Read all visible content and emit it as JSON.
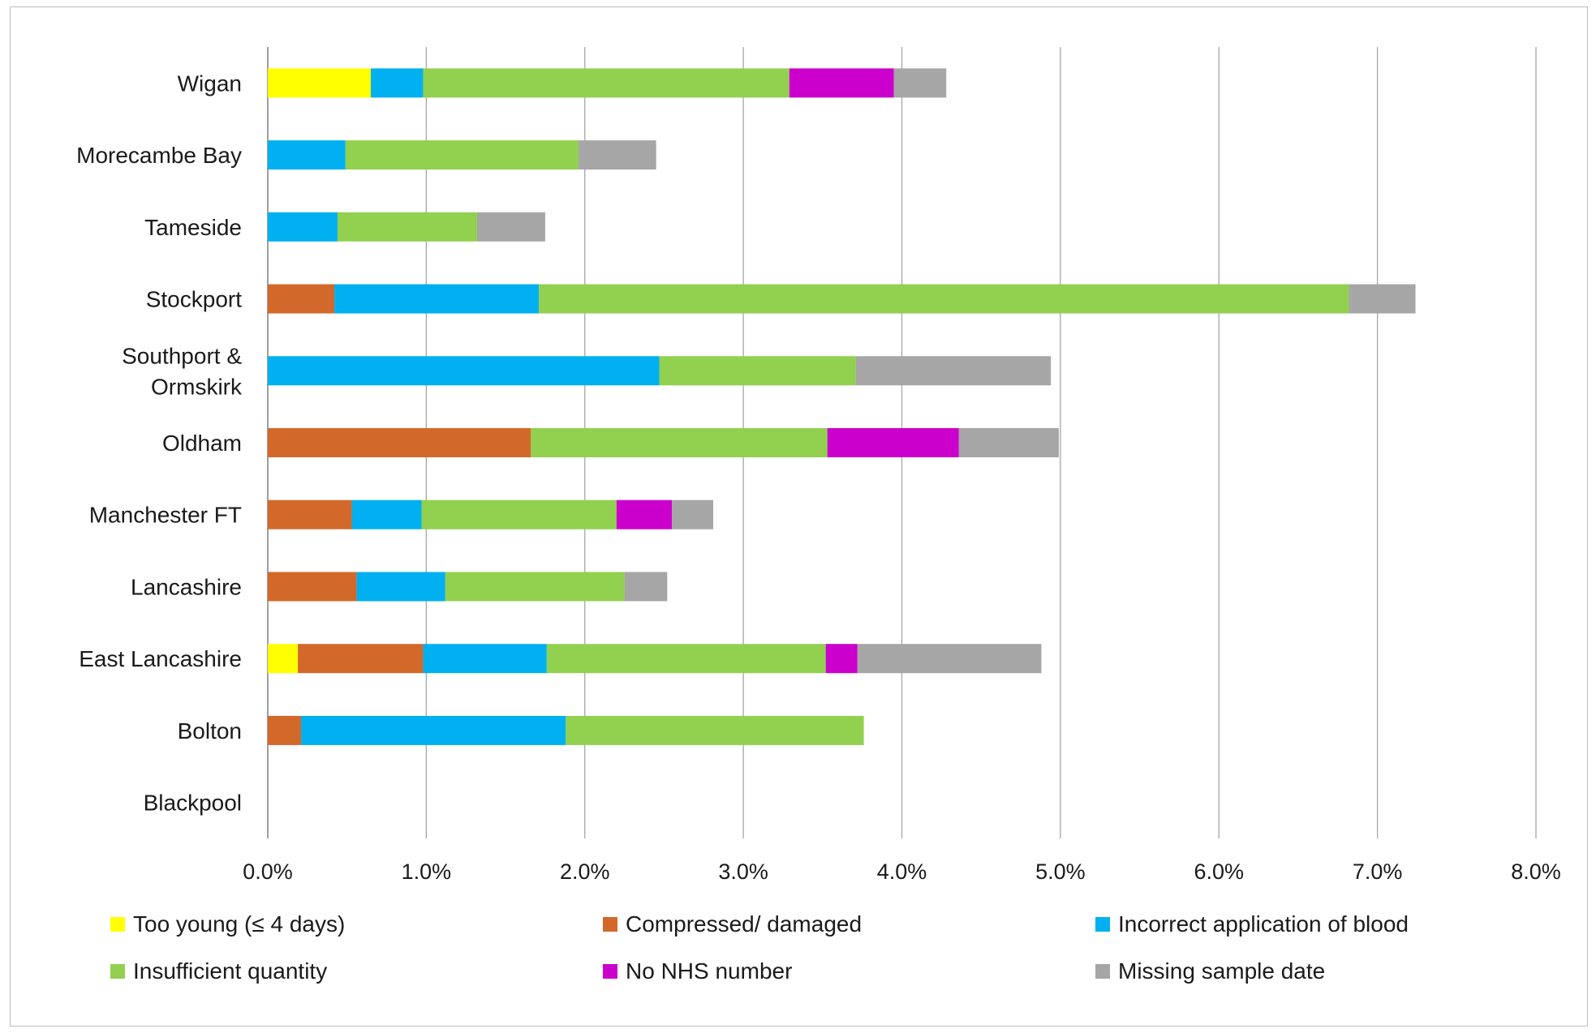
{
  "chart_data": {
    "type": "bar",
    "orientation": "horizontal",
    "stacked": true,
    "categories": [
      "Wigan",
      "Morecambe Bay",
      "Tameside",
      "Stockport",
      "Southport & Ormskirk",
      "Oldham",
      "Manchester FT",
      "Lancashire",
      "East Lancashire",
      "Bolton",
      "Blackpool"
    ],
    "category_lines": [
      [
        "Wigan"
      ],
      [
        "Morecambe Bay"
      ],
      [
        "Tameside"
      ],
      [
        "Stockport"
      ],
      [
        "Southport &",
        "Ormskirk"
      ],
      [
        "Oldham"
      ],
      [
        "Manchester FT"
      ],
      [
        "Lancashire"
      ],
      [
        "East Lancashire"
      ],
      [
        "Bolton"
      ],
      [
        "Blackpool"
      ]
    ],
    "series": [
      {
        "name": "Too young (≤ 4 days)",
        "color": "#ffff00",
        "values": [
          0.65,
          0,
          0,
          0,
          0,
          0,
          0,
          0,
          0.19,
          0,
          0
        ]
      },
      {
        "name": "Compressed/ damaged",
        "color": "#d2692b",
        "values": [
          0,
          0,
          0,
          0.42,
          0,
          1.66,
          0.53,
          0.56,
          0.79,
          0.21,
          0
        ]
      },
      {
        "name": "Incorrect application of blood",
        "color": "#00b0f0",
        "values": [
          0.33,
          0.49,
          0.44,
          1.29,
          2.47,
          0,
          0.44,
          0.56,
          0.78,
          1.67,
          0
        ]
      },
      {
        "name": "Insufficient quantity",
        "color": "#92d050",
        "values": [
          2.31,
          1.47,
          0.88,
          5.11,
          1.24,
          1.87,
          1.23,
          1.13,
          1.76,
          1.88,
          0
        ]
      },
      {
        "name": "No NHS number",
        "color": "#cc00cc",
        "values": [
          0.66,
          0,
          0,
          0,
          0,
          0.83,
          0.35,
          0,
          0.2,
          0,
          0
        ]
      },
      {
        "name": "Missing sample date",
        "color": "#a6a6a6",
        "values": [
          0.33,
          0.49,
          0.43,
          0.42,
          1.23,
          0.63,
          0.26,
          0.27,
          1.16,
          0,
          0
        ]
      }
    ],
    "xlim": [
      0,
      8
    ],
    "xticks": [
      0,
      1,
      2,
      3,
      4,
      5,
      6,
      7,
      8
    ],
    "xtick_labels": [
      "0.0%",
      "1.0%",
      "2.0%",
      "3.0%",
      "4.0%",
      "5.0%",
      "6.0%",
      "7.0%",
      "8.0%"
    ],
    "xlabel": "",
    "ylabel": "",
    "title": "",
    "grid": "vertical",
    "legend_position": "bottom"
  }
}
